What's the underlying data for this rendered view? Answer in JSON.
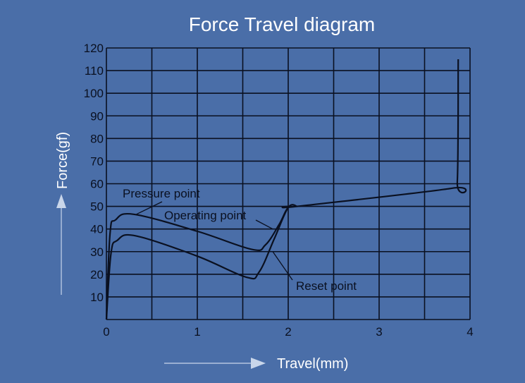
{
  "chart_data": {
    "type": "line",
    "title": "Force Travel diagram",
    "xlabel": "Travel(mm)",
    "ylabel": "Force(gf)",
    "xlim": [
      0,
      4
    ],
    "ylim": [
      0,
      120
    ],
    "xticks": [
      0,
      1,
      2,
      3,
      4
    ],
    "yticks": [
      10,
      20,
      30,
      40,
      50,
      60,
      70,
      80,
      90,
      100,
      110,
      120
    ],
    "grid": true,
    "series": [
      {
        "x": [
          0,
          0.04,
          0.1,
          0.3,
          1.0,
          1.6,
          1.75,
          1.9,
          2.0,
          2.1,
          3.8,
          3.86,
          3.87
        ],
        "y": [
          0,
          38,
          44,
          46.5,
          39,
          31,
          33,
          42,
          49.5,
          50,
          58,
          61,
          115
        ]
      },
      {
        "x": [
          0,
          0.05,
          0.12,
          0.32,
          1.0,
          1.54,
          1.68,
          1.85,
          2.0,
          2.1
        ],
        "y": [
          0,
          29,
          35,
          37,
          28,
          18.7,
          21,
          36,
          49.5,
          50
        ]
      }
    ],
    "annotations": [
      {
        "text": "Pressure point",
        "x": 0.33,
        "y": 46.5
      },
      {
        "text": "Operating point",
        "x": 1.83,
        "y": 40
      },
      {
        "text": "Reset point",
        "x": 1.83,
        "y": 30
      }
    ],
    "colors": {
      "background": "#4a6ea8",
      "line": "#0a1020",
      "title": "#ffffff",
      "arrow": "#c9d6ea"
    }
  }
}
